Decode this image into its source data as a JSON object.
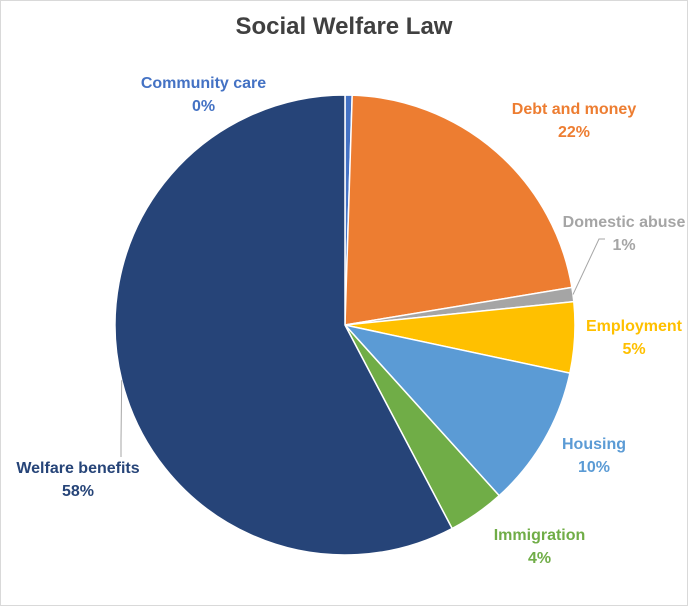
{
  "chart_data": {
    "type": "pie",
    "title": "Social Welfare Law",
    "slices": [
      {
        "label": "Community care",
        "value": 0.5,
        "pct_label": "0%",
        "color": "#4472C4"
      },
      {
        "label": "Debt and money",
        "value": 22,
        "pct_label": "22%",
        "color": "#ED7D31"
      },
      {
        "label": "Domestic abuse",
        "value": 1,
        "pct_label": "1%",
        "color": "#A5A5A5"
      },
      {
        "label": "Employment",
        "value": 5,
        "pct_label": "5%",
        "color": "#FFC000"
      },
      {
        "label": "Housing",
        "value": 10,
        "pct_label": "10%",
        "color": "#5B9BD5"
      },
      {
        "label": "Immigration",
        "value": 4,
        "pct_label": "4%",
        "color": "#70AD47"
      },
      {
        "label": "Welfare benefits",
        "value": 58,
        "pct_label": "58%",
        "color": "#264478"
      }
    ]
  }
}
